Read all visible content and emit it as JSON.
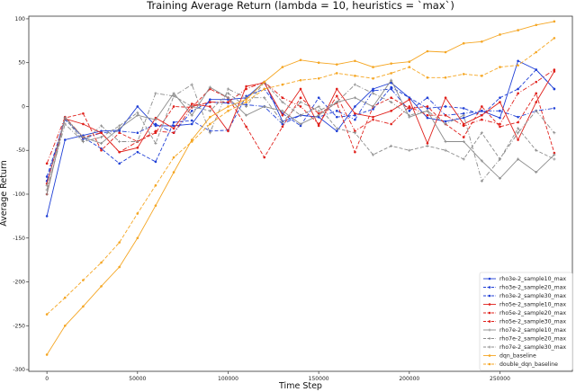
{
  "chart_data": {
    "type": "line",
    "title": "Training Average Return (lambda = 10, heuristics = `max`)",
    "xlabel": "Time Step",
    "ylabel": "Average Return",
    "xlim": [
      -10000,
      290000
    ],
    "ylim": [
      -302,
      103
    ],
    "xticks": [
      0,
      50000,
      100000,
      150000,
      200000,
      250000
    ],
    "yticks": [
      -300,
      -250,
      -200,
      -150,
      -100,
      -50,
      0,
      50,
      100
    ],
    "grid": false,
    "legend_position": "lower-right",
    "x": [
      0,
      10000,
      20000,
      30000,
      40000,
      50000,
      60000,
      70000,
      80000,
      90000,
      100000,
      110000,
      120000,
      130000,
      140000,
      150000,
      160000,
      170000,
      180000,
      190000,
      200000,
      210000,
      220000,
      230000,
      240000,
      250000,
      260000,
      270000,
      280000
    ],
    "series": [
      {
        "name": "rho3e-2_sample10_max",
        "color": "#1f3fd6",
        "style": "solid",
        "marker": "circle",
        "values": [
          -125,
          -38,
          -33,
          -28,
          -27,
          0,
          -22,
          -22,
          -20,
          8,
          8,
          10,
          28,
          -17,
          -10,
          -12,
          -28,
          0,
          20,
          27,
          10,
          -13,
          -17,
          -13,
          -5,
          -13,
          52,
          42,
          20
        ]
      },
      {
        "name": "rho3e-2_sample20_max",
        "color": "#1f3fd6",
        "style": "dashed",
        "marker": "circle",
        "values": [
          -80,
          -15,
          -35,
          -48,
          -65,
          -52,
          -63,
          -18,
          -16,
          -28,
          -27,
          12,
          20,
          -8,
          -22,
          10,
          -12,
          -10,
          -3,
          22,
          10,
          -2,
          0,
          -2,
          -10,
          10,
          20,
          42,
          20
        ]
      },
      {
        "name": "rho3e-2_sample30_max",
        "color": "#1f3fd6",
        "style": "dashdot",
        "marker": "circle",
        "values": [
          -85,
          -12,
          -37,
          -30,
          -28,
          -30,
          -20,
          -30,
          -5,
          5,
          4,
          2,
          0,
          -20,
          -10,
          -12,
          -5,
          -15,
          18,
          20,
          -5,
          10,
          -10,
          -8,
          -5,
          -5,
          -12,
          -5,
          -2
        ]
      },
      {
        "name": "rho5e-2_sample10_max",
        "color": "#e0201b",
        "style": "solid",
        "marker": "circle",
        "values": [
          -88,
          -14,
          -20,
          -30,
          -52,
          -47,
          -13,
          -25,
          3,
          0,
          -28,
          23,
          27,
          -10,
          20,
          -22,
          20,
          -8,
          -12,
          -5,
          8,
          -42,
          10,
          -20,
          -10,
          5,
          -38,
          5,
          40
        ]
      },
      {
        "name": "rho5e-2_sample20_max",
        "color": "#e0201b",
        "style": "dashed",
        "marker": "circle",
        "values": [
          -100,
          -13,
          -8,
          -50,
          -30,
          -40,
          -30,
          0,
          -1,
          20,
          10,
          -23,
          -58,
          -23,
          10,
          -8,
          4,
          -52,
          0,
          10,
          -2,
          0,
          -20,
          -35,
          0,
          -23,
          -18,
          15,
          -53
        ]
      },
      {
        "name": "rho5e-2_sample30_max",
        "color": "#e0201b",
        "style": "dashdot",
        "marker": "circle",
        "values": [
          -65,
          -12,
          -35,
          -30,
          -52,
          -40,
          -28,
          -30,
          0,
          5,
          5,
          20,
          28,
          10,
          0,
          -20,
          12,
          -28,
          -15,
          -20,
          0,
          -10,
          -10,
          -22,
          -15,
          -20,
          15,
          28,
          42
        ]
      },
      {
        "name": "rho7e-2_sample10_max",
        "color": "#8c8c8c",
        "style": "solid",
        "marker": "plus",
        "values": [
          -100,
          -13,
          -35,
          -42,
          -25,
          -10,
          -15,
          15,
          -10,
          22,
          10,
          -10,
          0,
          -5,
          -20,
          -10,
          5,
          10,
          0,
          30,
          -12,
          -5,
          -40,
          -40,
          -62,
          -82,
          -60,
          -75,
          -55
        ]
      },
      {
        "name": "rho7e-2_sample20_max",
        "color": "#8c8c8c",
        "style": "dashed",
        "marker": "plus",
        "values": [
          -90,
          -13,
          -40,
          -35,
          -22,
          -7,
          -42,
          12,
          0,
          -5,
          15,
          0,
          28,
          5,
          -10,
          0,
          -25,
          -30,
          -55,
          -45,
          -50,
          -45,
          -50,
          -60,
          -30,
          -60,
          -25,
          -50,
          -60
        ]
      },
      {
        "name": "rho7e-2_sample30_max",
        "color": "#8c8c8c",
        "style": "dashdot",
        "marker": "plus",
        "values": [
          -95,
          -20,
          -40,
          -22,
          -40,
          -40,
          15,
          12,
          25,
          -30,
          20,
          10,
          10,
          -18,
          5,
          -5,
          5,
          25,
          15,
          5,
          -10,
          -5,
          -20,
          -10,
          -85,
          -60,
          -30,
          -5,
          -30
        ]
      },
      {
        "name": "dqn_baseline",
        "color": "#f5a623",
        "style": "solid",
        "marker": "circle",
        "values": [
          -283,
          -250,
          -228,
          -205,
          -183,
          -150,
          -113,
          -75,
          -38,
          -12,
          0,
          8,
          28,
          45,
          53,
          50,
          48,
          52,
          45,
          49,
          51,
          63,
          62,
          72,
          74,
          82,
          87,
          93,
          97
        ]
      },
      {
        "name": "double_dqn_baseline",
        "color": "#f5a623",
        "style": "dashed",
        "marker": "circle",
        "values": [
          -237,
          -218,
          -198,
          -178,
          -155,
          -122,
          -90,
          -58,
          -40,
          -20,
          -5,
          5,
          20,
          25,
          30,
          32,
          38,
          35,
          32,
          38,
          45,
          33,
          33,
          37,
          35,
          45,
          47,
          62,
          78
        ]
      }
    ]
  }
}
